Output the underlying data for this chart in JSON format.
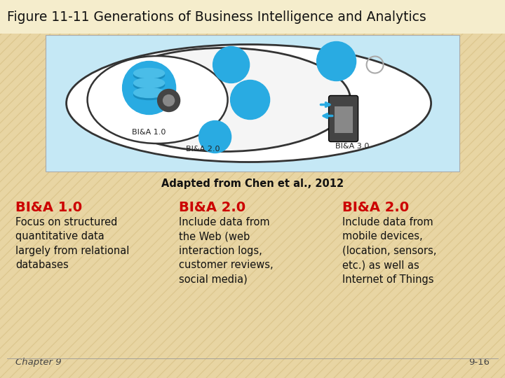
{
  "title": "Figure 11-11 Generations of Business Intelligence and Analytics",
  "title_fontsize": 13.5,
  "title_color": "#111111",
  "bg_color": "#E8D5A3",
  "stripe_color": "#D4BC80",
  "image_box_color": "#C5E8F5",
  "caption": "Adapted from Chen et al., 2012",
  "caption_fontsize": 10.5,
  "col1_header": "BI&A 1.0",
  "col2_header": "BI&A 2.0",
  "col3_header": "BI&A 2.0",
  "header_color": "#CC0000",
  "header_fontsize": 14,
  "col1_text": "Focus on structured\nquantitative data\nlargely from relational\ndatabases",
  "col2_text": "Include data from\nthe Web (web\ninteraction logs,\ncustomer reviews,\nsocial media)",
  "col3_text": "Include data from\nmobile devices,\n(location, sensors,\netc.) as well as\nInternet of Things",
  "body_fontsize": 10.5,
  "body_color": "#111111",
  "footer_left": "Chapter 9",
  "footer_right": "9-16",
  "footer_fontsize": 9.5,
  "footer_color": "#444444",
  "icon_color": "#29ABE2",
  "ellipse_stroke": "#333333",
  "title_bar_color": "#F5EDCC"
}
